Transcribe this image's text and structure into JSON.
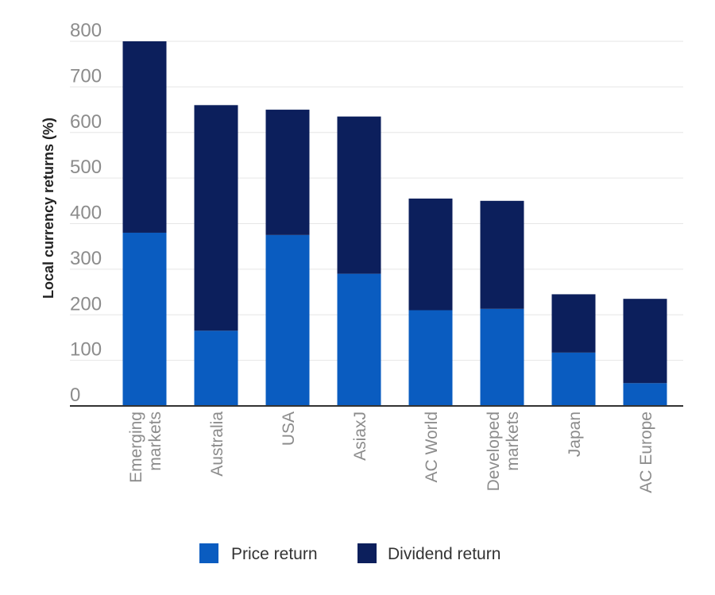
{
  "chart_data": {
    "type": "bar",
    "stacked": true,
    "title": "",
    "xlabel": "",
    "ylabel": "Local currency returns (%)",
    "ylim": [
      0,
      800
    ],
    "yticks": [
      0,
      100,
      200,
      300,
      400,
      500,
      600,
      700,
      800
    ],
    "grid": true,
    "legend_position": "bottom",
    "categories": [
      [
        "Emerging",
        "markets"
      ],
      [
        "Australia"
      ],
      [
        "USA"
      ],
      [
        "AsiaxJ"
      ],
      [
        "AC World"
      ],
      [
        "Developed",
        "markets"
      ],
      [
        "Japan"
      ],
      [
        "AC Europe"
      ]
    ],
    "series": [
      {
        "name": "Price return",
        "color": "#0a5cc0",
        "values": [
          380,
          165,
          375,
          290,
          210,
          213,
          117,
          50
        ]
      },
      {
        "name": "Dividend return",
        "color": "#0c1f5c",
        "values": [
          420,
          495,
          275,
          345,
          245,
          237,
          128,
          185
        ]
      }
    ]
  }
}
